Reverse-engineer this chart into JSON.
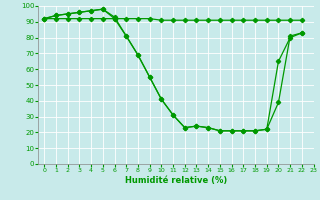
{
  "xlabel": "Humidité relative (%)",
  "background_color": "#c8eaea",
  "grid_color": "#ffffff",
  "line_color": "#009900",
  "line1": [
    92,
    94,
    95,
    96,
    97,
    98,
    93,
    81,
    69,
    55,
    41,
    31,
    23,
    24,
    23,
    21,
    21,
    21,
    21,
    22,
    39,
    81,
    83
  ],
  "line2": [
    92,
    94,
    95,
    96,
    97,
    98,
    92,
    81,
    69,
    55,
    41,
    31,
    23,
    24,
    23,
    21,
    21,
    21,
    21,
    22,
    65,
    80,
    83
  ],
  "line3": [
    92,
    92,
    92,
    92,
    92,
    92,
    92,
    92,
    92,
    92,
    91,
    91,
    91,
    91,
    91,
    91,
    91,
    91,
    91,
    91,
    91,
    91,
    91
  ],
  "xlim": [
    -0.5,
    23
  ],
  "ylim": [
    0,
    100
  ],
  "xticks": [
    0,
    1,
    2,
    3,
    4,
    5,
    6,
    7,
    8,
    9,
    10,
    11,
    12,
    13,
    14,
    15,
    16,
    17,
    18,
    19,
    20,
    21,
    22,
    23
  ],
  "yticks": [
    0,
    10,
    20,
    30,
    40,
    50,
    60,
    70,
    80,
    90,
    100
  ],
  "xlabel_fontsize": 6,
  "tick_fontsize": 4.5,
  "ytick_fontsize": 5,
  "markersize": 2.2,
  "linewidth": 0.9
}
